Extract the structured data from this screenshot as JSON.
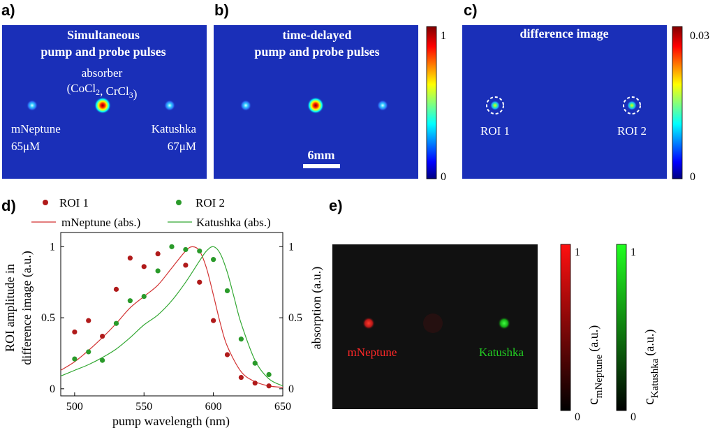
{
  "panels": {
    "a": {
      "label": "a)",
      "title_line1": "Simultaneous",
      "title_line2": "pump and probe pulses",
      "absorber_line1": "absorber",
      "absorber_line2": "(CoCl2, CrCl3)",
      "left_name": "mNeptune",
      "left_conc": "65μM",
      "right_name": "Katushka",
      "right_conc": "67μM"
    },
    "b": {
      "label": "b)",
      "title_line1": "time-delayed",
      "title_line2": "pump and probe pulses",
      "scalebar": "6mm",
      "colorbar_max": "1",
      "colorbar_min": "0"
    },
    "c": {
      "label": "c)",
      "title": "difference image",
      "roi1": "ROI 1",
      "roi2": "ROI 2",
      "colorbar_max": "0.03",
      "colorbar_min": "0"
    },
    "d": {
      "label": "d)"
    },
    "e": {
      "label": "e)",
      "left_name": "mNeptune",
      "right_name": "Katushka",
      "cbar1_max": "1",
      "cbar1_min": "0",
      "cbar2_max": "1",
      "cbar2_min": "0",
      "cbar1_label": "c",
      "cbar1_sub": "mNeptune",
      "cbar1_unit": "(a.u.)",
      "cbar2_label": "c",
      "cbar2_sub": "Katushka",
      "cbar2_unit": "(a.u.)"
    }
  },
  "colors": {
    "jet_background": "#1a2fb8",
    "roi1": "#b01a1a",
    "roi2": "#2a9a2a",
    "mneptune_line": "#d23232",
    "katushka_line": "#33a833",
    "e_red": "#ff2020",
    "e_green": "#19d019"
  },
  "chart_data": {
    "type": "scatter",
    "xlabel": "pump wavelength (nm)",
    "ylabel_line1": "ROI amplitude in",
    "ylabel_line2": "difference image (a.u.)",
    "y2label": "absorption  (a.u.)",
    "xlim": [
      490,
      650
    ],
    "ylim": [
      -0.05,
      1.1
    ],
    "xticks": [
      "500",
      "550",
      "600",
      "650"
    ],
    "yticks": [
      "0",
      "0.5",
      "1"
    ],
    "y2ticks": [
      "0",
      "0.5",
      "1"
    ],
    "legend": {
      "roi1": "ROI 1",
      "roi2": "ROI 2",
      "mneptune": "mNeptune (abs.)",
      "katushka": "Katushka (abs.)"
    },
    "series": [
      {
        "name": "ROI 1",
        "kind": "points",
        "x": [
          500,
          510,
          520,
          530,
          540,
          550,
          560,
          580,
          590,
          600,
          610,
          620,
          630,
          640
        ],
        "y": [
          0.4,
          0.48,
          0.37,
          0.7,
          0.92,
          0.86,
          0.95,
          0.87,
          0.75,
          0.48,
          0.24,
          0.08,
          0.04,
          0.02
        ]
      },
      {
        "name": "ROI 2",
        "kind": "points",
        "x": [
          500,
          510,
          520,
          530,
          540,
          550,
          560,
          570,
          580,
          590,
          600,
          610,
          620,
          630,
          640
        ],
        "y": [
          0.21,
          0.26,
          0.2,
          0.46,
          0.62,
          0.65,
          0.83,
          1.0,
          0.98,
          0.97,
          0.91,
          0.69,
          0.35,
          0.18,
          0.1
        ]
      },
      {
        "name": "mNeptune (abs.)",
        "kind": "line",
        "x": [
          490,
          500,
          510,
          520,
          530,
          540,
          550,
          560,
          570,
          580,
          585,
          590,
          595,
          600,
          605,
          610,
          620,
          630,
          640,
          650
        ],
        "y": [
          0.13,
          0.19,
          0.27,
          0.36,
          0.46,
          0.57,
          0.65,
          0.73,
          0.85,
          0.97,
          1.0,
          0.97,
          0.85,
          0.66,
          0.46,
          0.3,
          0.12,
          0.05,
          0.02,
          0.01
        ]
      },
      {
        "name": "Katushka (abs.)",
        "kind": "line",
        "x": [
          490,
          500,
          510,
          520,
          530,
          540,
          550,
          560,
          570,
          580,
          590,
          595,
          600,
          605,
          610,
          615,
          620,
          630,
          640,
          650
        ],
        "y": [
          0.09,
          0.13,
          0.17,
          0.22,
          0.28,
          0.36,
          0.45,
          0.52,
          0.62,
          0.75,
          0.9,
          0.97,
          1.0,
          0.95,
          0.82,
          0.64,
          0.46,
          0.2,
          0.07,
          0.02
        ]
      }
    ]
  }
}
